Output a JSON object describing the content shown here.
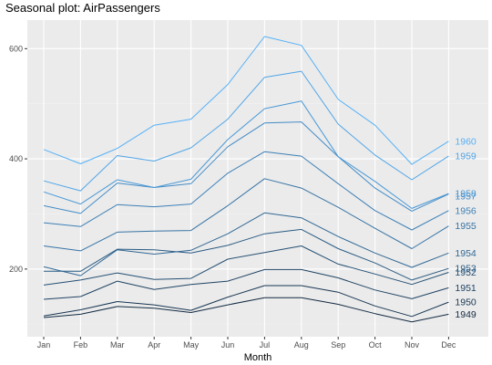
{
  "chart_data": {
    "type": "line",
    "title": "Seasonal plot: AirPassengers",
    "xlabel": "Month",
    "ylabel": "",
    "categories": [
      "Jan",
      "Feb",
      "Mar",
      "Apr",
      "May",
      "Jun",
      "Jul",
      "Aug",
      "Sep",
      "Oct",
      "Nov",
      "Dec"
    ],
    "yticks": [
      200,
      400,
      600
    ],
    "ylim": [
      87,
      640
    ],
    "grid": true,
    "legend": "direct labels at right end of each line",
    "colors": {
      "panel_background": "#ebebeb",
      "grid_major": "#ffffff",
      "grid_minor": "#f2f2f2",
      "line_1949": "#132b43",
      "line_1960": "#56b1f7"
    },
    "series": [
      {
        "name": "1949",
        "values": [
          112,
          118,
          132,
          129,
          121,
          135,
          148,
          148,
          136,
          119,
          104,
          118
        ]
      },
      {
        "name": "1950",
        "values": [
          115,
          126,
          141,
          135,
          125,
          149,
          170,
          170,
          158,
          133,
          114,
          140
        ]
      },
      {
        "name": "1951",
        "values": [
          145,
          150,
          178,
          163,
          172,
          178,
          199,
          199,
          184,
          162,
          146,
          166
        ]
      },
      {
        "name": "1952",
        "values": [
          171,
          180,
          193,
          181,
          183,
          218,
          230,
          242,
          209,
          191,
          172,
          194
        ]
      },
      {
        "name": "1953",
        "values": [
          196,
          196,
          236,
          235,
          229,
          243,
          264,
          272,
          237,
          211,
          180,
          201
        ]
      },
      {
        "name": "1954",
        "values": [
          204,
          188,
          235,
          227,
          234,
          264,
          302,
          293,
          259,
          229,
          203,
          229
        ]
      },
      {
        "name": "1955",
        "values": [
          242,
          233,
          267,
          269,
          270,
          315,
          364,
          347,
          312,
          274,
          237,
          278
        ]
      },
      {
        "name": "1956",
        "values": [
          284,
          277,
          317,
          313,
          318,
          374,
          413,
          405,
          355,
          306,
          271,
          306
        ]
      },
      {
        "name": "1957",
        "values": [
          315,
          301,
          356,
          348,
          355,
          422,
          465,
          467,
          404,
          347,
          305,
          336
        ]
      },
      {
        "name": "1958",
        "values": [
          340,
          318,
          362,
          348,
          363,
          435,
          491,
          505,
          404,
          359,
          310,
          337
        ]
      },
      {
        "name": "1959",
        "values": [
          360,
          342,
          406,
          396,
          420,
          472,
          548,
          559,
          463,
          407,
          362,
          405
        ]
      },
      {
        "name": "1960",
        "values": [
          417,
          391,
          419,
          461,
          472,
          535,
          622,
          606,
          508,
          461,
          390,
          432
        ]
      }
    ]
  }
}
